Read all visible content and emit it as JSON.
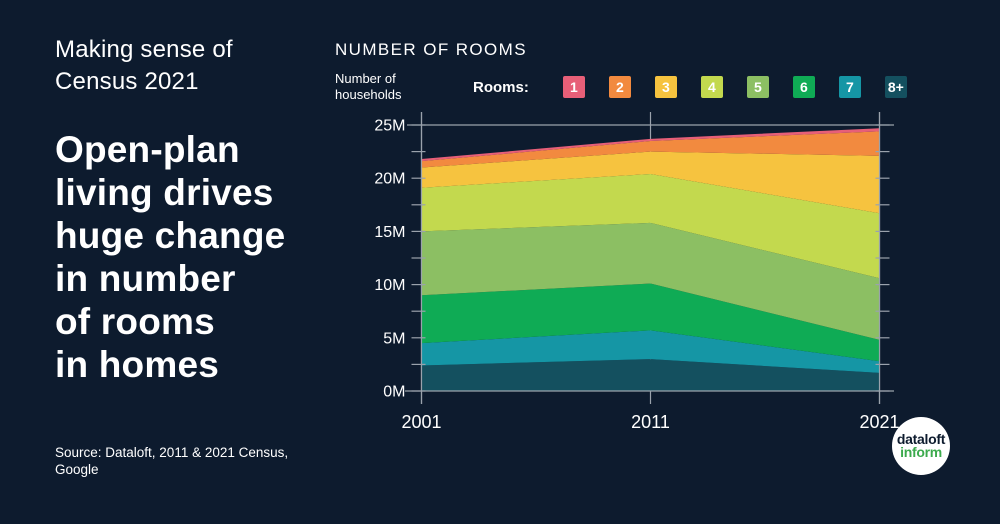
{
  "kicker": "Making sense of\nCensus 2021",
  "headline": "Open-plan\nliving drives\nhuge change\nin number\nof rooms\nin homes",
  "source": "Source: Dataloft, 2011 & 2021 Census,\nGoogle",
  "logo": {
    "line1": "dataloft",
    "line2": "inform",
    "accent_color": "#3caa4d"
  },
  "colors": {
    "background": "#0d1b2e",
    "axis": "#9aa2ac",
    "text": "#ffffff"
  },
  "chart": {
    "title": "NUMBER OF ROOMS",
    "y_axis_caption": "Number of\nhouseholds",
    "legend_label": "Rooms:"
  },
  "chart_data": {
    "type": "area",
    "stacked": true,
    "title": "NUMBER OF ROOMS",
    "xlabel": "",
    "ylabel": "Number of households",
    "x": [
      2001,
      2011,
      2021
    ],
    "x_tick_labels": [
      "2001",
      "2011",
      "2021"
    ],
    "ylim": [
      0,
      25
    ],
    "y_tick_step": 5,
    "y_minor_tick_step": 2.5,
    "y_tick_labels": [
      "0M",
      "5M",
      "10M",
      "15M",
      "20M",
      "25M"
    ],
    "units": "millions of households",
    "legend_position": "top",
    "grid": "vertical-at-years-plus-top-rule",
    "series": [
      {
        "name": "1",
        "color": "#e75f78",
        "values": [
          0.2,
          0.2,
          0.3
        ]
      },
      {
        "name": "2",
        "color": "#f28a3f",
        "values": [
          0.6,
          1.0,
          2.3
        ]
      },
      {
        "name": "3",
        "color": "#f6c33f",
        "values": [
          1.9,
          2.1,
          5.4
        ]
      },
      {
        "name": "4",
        "color": "#c3d94e",
        "values": [
          4.1,
          4.6,
          6.1
        ]
      },
      {
        "name": "5",
        "color": "#8cbf63",
        "values": [
          6.0,
          5.7,
          5.8
        ]
      },
      {
        "name": "6",
        "color": "#0fab55",
        "values": [
          4.5,
          4.4,
          2.0
        ]
      },
      {
        "name": "7",
        "color": "#1596a5",
        "values": [
          2.1,
          2.7,
          1.1
        ]
      },
      {
        "name": "8+",
        "color": "#14505f",
        "values": [
          2.4,
          3.0,
          1.7
        ]
      }
    ],
    "stack_order_bottom_to_top": [
      "8+",
      "7",
      "6",
      "5",
      "4",
      "3",
      "2",
      "1"
    ],
    "totals": [
      21.8,
      23.7,
      24.7
    ]
  }
}
